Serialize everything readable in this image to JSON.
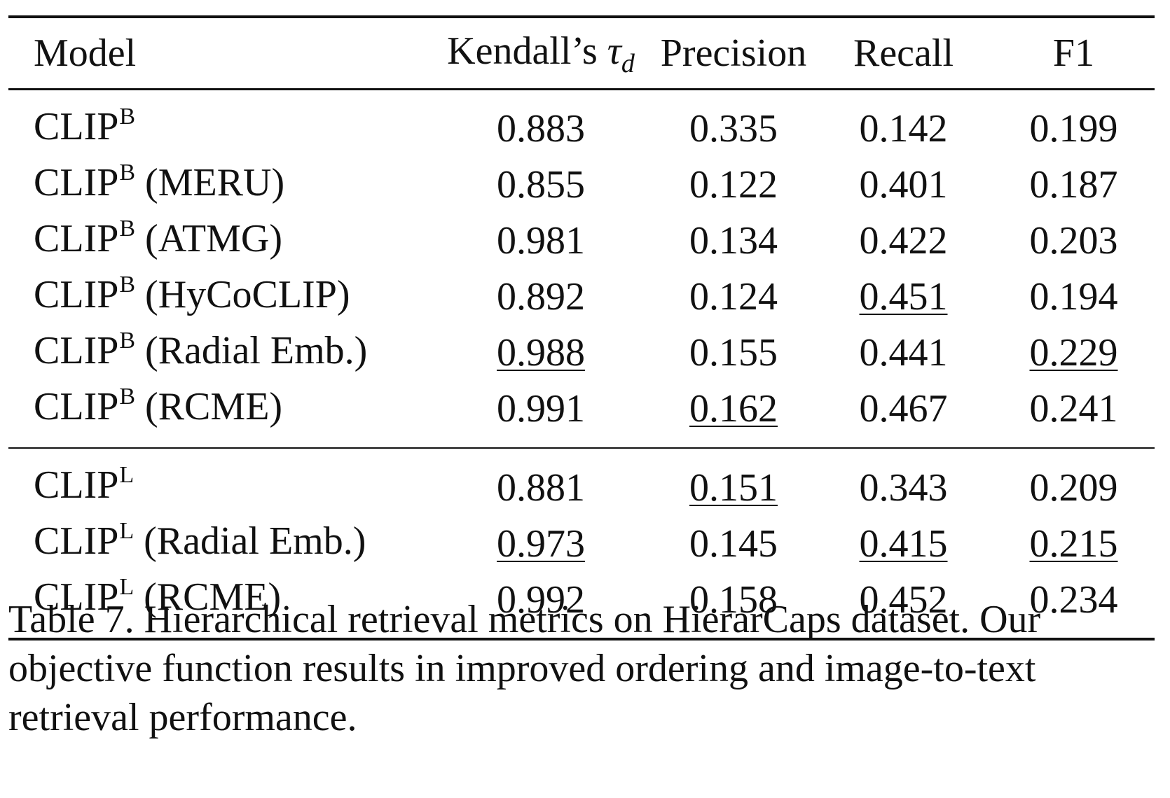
{
  "table": {
    "headers": {
      "model": "Model",
      "tau_main": "Kendall’s ",
      "tau_symbol": "τ",
      "tau_sub": "d",
      "precision": "Precision",
      "recall": "Recall",
      "f1": "F1"
    },
    "groups": [
      {
        "rows": [
          {
            "base": "CLIP",
            "sup": "B",
            "variant": "",
            "tau": "0.883",
            "precision": "0.335",
            "recall": "0.142",
            "f1": "0.199"
          },
          {
            "base": "CLIP",
            "sup": "B",
            "variant": "(MERU)",
            "tau": "0.855",
            "precision": "0.122",
            "recall": "0.401",
            "f1": "0.187"
          },
          {
            "base": "CLIP",
            "sup": "B",
            "variant": "(ATMG)",
            "tau": "0.981",
            "precision": "0.134",
            "recall": "0.422",
            "f1": "0.203"
          },
          {
            "base": "CLIP",
            "sup": "B",
            "variant": "(HyCoCLIP)",
            "tau": "0.892",
            "precision": "0.124",
            "recall": "0.451",
            "f1": "0.194"
          },
          {
            "base": "CLIP",
            "sup": "B",
            "variant": "(Radial Emb.)",
            "tau": "0.988",
            "precision": "0.155",
            "recall": "0.441",
            "f1": "0.229"
          },
          {
            "base": "CLIP",
            "sup": "B",
            "variant": "(RCME)",
            "tau": "0.991",
            "precision": "0.162",
            "recall": "0.467",
            "f1": "0.241"
          }
        ]
      },
      {
        "rows": [
          {
            "base": "CLIP",
            "sup": "L",
            "variant": "",
            "tau": "0.881",
            "precision": "0.151",
            "recall": "0.343",
            "f1": "0.209"
          },
          {
            "base": "CLIP",
            "sup": "L",
            "variant": "(Radial Emb.)",
            "tau": "0.973",
            "precision": "0.145",
            "recall": "0.415",
            "f1": "0.215"
          },
          {
            "base": "CLIP",
            "sup": "L",
            "variant": "(RCME)",
            "tau": "0.992",
            "precision": "0.158",
            "recall": "0.452",
            "f1": "0.234"
          }
        ]
      }
    ]
  },
  "caption": "Table 7. Hierarchical retrieval metrics on HierarCaps dataset. Our objective function results in improved ordering and image-to-text retrieval performance."
}
